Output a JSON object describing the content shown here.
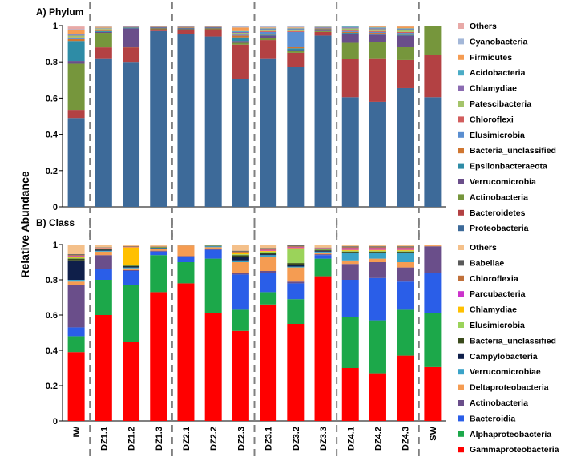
{
  "ylabel": "Relative Abundance",
  "chart_data": [
    {
      "type": "bar",
      "stacked": true,
      "title": "A) Phylum",
      "ylim": [
        0,
        1
      ],
      "yticks": [
        "0",
        "0.2",
        "0.4",
        "0.6",
        "0.8",
        "1"
      ],
      "categories": [
        "IW",
        "DZ1.1",
        "DZ1.2",
        "DZ1.3",
        "DZ2.1",
        "DZ2.2",
        "DZ2.3",
        "DZ3.1",
        "DZ3.2",
        "DZ3.3",
        "DZ4.1",
        "DZ4.2",
        "DZ4.3",
        "SW"
      ],
      "group_separators_after": [
        0,
        3,
        6,
        9,
        12
      ],
      "series": [
        {
          "name": "Proteobacteria",
          "color": "#3d6a99",
          "values": [
            0.49,
            0.82,
            0.8,
            0.97,
            0.955,
            0.94,
            0.705,
            0.82,
            0.77,
            0.945,
            0.605,
            0.58,
            0.655,
            0.605
          ]
        },
        {
          "name": "Bacteroidetes",
          "color": "#b34143",
          "values": [
            0.045,
            0.06,
            0.08,
            0.01,
            0.02,
            0.04,
            0.19,
            0.1,
            0.08,
            0.02,
            0.21,
            0.24,
            0.155,
            0.235
          ]
        },
        {
          "name": "Actinobacteria",
          "color": "#76963c",
          "values": [
            0.255,
            0.08,
            0.005,
            0.005,
            0.005,
            0.005,
            0.01,
            0.01,
            0.01,
            0.005,
            0.09,
            0.09,
            0.075,
            0.16
          ]
        },
        {
          "name": "Verrucomicrobia",
          "color": "#6a4e8a",
          "values": [
            0.015,
            0.005,
            0.1,
            0.005,
            0.005,
            0.005,
            0.01,
            0.015,
            0.005,
            0.005,
            0.05,
            0.04,
            0.06,
            0
          ]
        },
        {
          "name": "Epsilonbacteraeota",
          "color": "#2e8ca6",
          "values": [
            0.11,
            0.005,
            0.005,
            0.002,
            0.003,
            0.002,
            0.02,
            0.005,
            0.01,
            0.005,
            0.005,
            0.005,
            0.005,
            0
          ]
        },
        {
          "name": "Bacteria_unclassified",
          "color": "#d07630",
          "values": [
            0.01,
            0.005,
            0.002,
            0.002,
            0.003,
            0.002,
            0.01,
            0.005,
            0.01,
            0.005,
            0.005,
            0.005,
            0.005,
            0
          ]
        },
        {
          "name": "Elusimicrobia",
          "color": "#5a8ed0",
          "values": [
            0.005,
            0.002,
            0.002,
            0.001,
            0.002,
            0.001,
            0.005,
            0.01,
            0.08,
            0.005,
            0.005,
            0.005,
            0.005,
            0
          ]
        },
        {
          "name": "Chloroflexi",
          "color": "#d25d5d",
          "values": [
            0.005,
            0.002,
            0.002,
            0.001,
            0.002,
            0.001,
            0.005,
            0.005,
            0.005,
            0.002,
            0.005,
            0.005,
            0.005,
            0
          ]
        },
        {
          "name": "Patescibacteria",
          "color": "#a4c46a",
          "values": [
            0.01,
            0.005,
            0.002,
            0.001,
            0.002,
            0.001,
            0.005,
            0.005,
            0.005,
            0.002,
            0.01,
            0.01,
            0.01,
            0
          ]
        },
        {
          "name": "Chlamydiae",
          "color": "#8b6bb1",
          "values": [
            0.005,
            0.002,
            0.001,
            0.001,
            0.001,
            0.001,
            0.005,
            0.005,
            0.005,
            0.001,
            0.005,
            0.005,
            0.005,
            0
          ]
        },
        {
          "name": "Acidobacteria",
          "color": "#4bacc6",
          "values": [
            0.005,
            0.002,
            0.001,
            0.001,
            0.001,
            0.001,
            0.005,
            0.005,
            0.005,
            0.001,
            0.005,
            0.005,
            0.005,
            0
          ]
        },
        {
          "name": "Firmicutes",
          "color": "#f59c52",
          "values": [
            0.02,
            0.005,
            0.001,
            0.001,
            0.001,
            0.001,
            0.02,
            0.005,
            0.005,
            0.001,
            0.005,
            0.005,
            0.01,
            0
          ]
        },
        {
          "name": "Cyanobacteria",
          "color": "#a3b7d8",
          "values": [
            0.005,
            0.002,
            0.001,
            0.001,
            0.001,
            0.001,
            0.005,
            0.005,
            0.005,
            0.001,
            0.005,
            0.005,
            0.005,
            0
          ]
        },
        {
          "name": "Others",
          "color": "#e8a9a7",
          "values": [
            0.015,
            0.003,
            0.001,
            0.002,
            0.002,
            0.002,
            0.005,
            0.005,
            0.005,
            0.002,
            0.005,
            0.005,
            0.005,
            0
          ]
        }
      ]
    },
    {
      "type": "bar",
      "stacked": true,
      "title": "B) Class",
      "ylim": [
        0,
        1
      ],
      "yticks": [
        "0",
        "0.2",
        "0.4",
        "0.6",
        "0.8",
        "1"
      ],
      "categories": [
        "IW",
        "DZ1.1",
        "DZ1.2",
        "DZ1.3",
        "DZ2.1",
        "DZ2.2",
        "DZ2.3",
        "DZ3.1",
        "DZ3.2",
        "DZ3.3",
        "DZ4.1",
        "DZ4.2",
        "DZ4.3",
        "SW"
      ],
      "group_separators_after": [
        0,
        3,
        6,
        9,
        12
      ],
      "series": [
        {
          "name": "Gammaproteobacteria",
          "color": "#ff0000",
          "values": [
            0.39,
            0.6,
            0.45,
            0.73,
            0.78,
            0.61,
            0.51,
            0.66,
            0.55,
            0.82,
            0.3,
            0.27,
            0.37,
            0.305
          ]
        },
        {
          "name": "Alphaproteobacteria",
          "color": "#1ca84a",
          "values": [
            0.09,
            0.2,
            0.32,
            0.21,
            0.12,
            0.31,
            0.12,
            0.07,
            0.14,
            0.1,
            0.29,
            0.3,
            0.26,
            0.305
          ]
        },
        {
          "name": "Bacteroidia",
          "color": "#2a5ee8",
          "values": [
            0.05,
            0.06,
            0.08,
            0.02,
            0.03,
            0.05,
            0.2,
            0.11,
            0.09,
            0.02,
            0.21,
            0.24,
            0.16,
            0.23
          ]
        },
        {
          "name": "Actinobacteria",
          "color": "#6a4e8a",
          "values": [
            0.24,
            0.08,
            0.005,
            0.005,
            0.005,
            0.005,
            0.01,
            0.01,
            0.01,
            0.005,
            0.09,
            0.09,
            0.08,
            0.15
          ]
        },
        {
          "name": "Deltaproteobacteria",
          "color": "#f59c52",
          "values": [
            0.02,
            0.02,
            0.01,
            0.01,
            0.06,
            0.01,
            0.06,
            0.08,
            0.08,
            0.01,
            0.02,
            0.02,
            0.03,
            0.005
          ]
        },
        {
          "name": "Verrucomicrobiae",
          "color": "#3aa3c8",
          "values": [
            0.01,
            0.005,
            0.005,
            0.005,
            0.005,
            0.005,
            0.01,
            0.01,
            0.005,
            0.005,
            0.04,
            0.03,
            0.05,
            0
          ]
        },
        {
          "name": "Campylobacteria",
          "color": "#0f1f4a",
          "values": [
            0.11,
            0.005,
            0.005,
            0.002,
            0.003,
            0.002,
            0.02,
            0.005,
            0.01,
            0.005,
            0.005,
            0.005,
            0.005,
            0
          ]
        },
        {
          "name": "Bacteria_unclassified",
          "color": "#3a4a1c",
          "values": [
            0.01,
            0.005,
            0.005,
            0.002,
            0.003,
            0.002,
            0.01,
            0.005,
            0.01,
            0.005,
            0.005,
            0.005,
            0.005,
            0
          ]
        },
        {
          "name": "Elusimicrobia",
          "color": "#9bd35a",
          "values": [
            0.005,
            0.002,
            0.005,
            0.002,
            0.002,
            0.002,
            0.005,
            0.01,
            0.08,
            0.005,
            0.005,
            0.005,
            0.005,
            0
          ]
        },
        {
          "name": "Chlamydiae",
          "color": "#ffc000",
          "values": [
            0.005,
            0.002,
            0.1,
            0.002,
            0.002,
            0.002,
            0.005,
            0.005,
            0.005,
            0.002,
            0.005,
            0.005,
            0.005,
            0
          ]
        },
        {
          "name": "Parcubacteria",
          "color": "#cc33cc",
          "values": [
            0.005,
            0.002,
            0.002,
            0.001,
            0.002,
            0.001,
            0.005,
            0.005,
            0.005,
            0.002,
            0.01,
            0.01,
            0.01,
            0
          ]
        },
        {
          "name": "Chloroflexia",
          "color": "#c0703a",
          "values": [
            0.005,
            0.002,
            0.002,
            0.001,
            0.002,
            0.001,
            0.005,
            0.005,
            0.005,
            0.002,
            0.005,
            0.005,
            0.005,
            0
          ]
        },
        {
          "name": "Babeliae",
          "color": "#595959",
          "values": [
            0.005,
            0.002,
            0.002,
            0.001,
            0.002,
            0.001,
            0.005,
            0.005,
            0.005,
            0.002,
            0.005,
            0.005,
            0.005,
            0
          ]
        },
        {
          "name": "Others",
          "color": "#f4c08a",
          "values": [
            0.055,
            0.015,
            0.009,
            0.009,
            0.016,
            0.014,
            0.045,
            0.02,
            0.04,
            0.02,
            0.01,
            0.01,
            0.02,
            0.005
          ]
        }
      ]
    }
  ]
}
